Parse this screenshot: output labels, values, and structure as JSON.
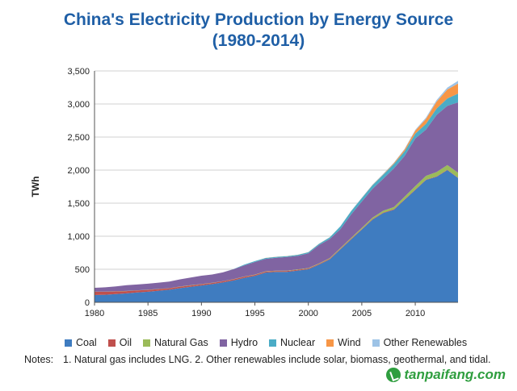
{
  "title_line1": "China's Electricity Production by Energy Source",
  "title_line2": "(1980-2014)",
  "notes_label": "Notes:",
  "notes_text": "1. Natural gas includes LNG. 2. Other renewables include solar, biomass, geothermal, and tidal.",
  "watermark": "tanpaifang.com",
  "chart_data": {
    "type": "area",
    "stacked": true,
    "ylabel": "TWh",
    "xlabel": "",
    "ylim": [
      0,
      3500
    ],
    "xlim": [
      1980,
      2014
    ],
    "yticks": [
      0,
      500,
      1000,
      1500,
      2000,
      2500,
      3000,
      3500
    ],
    "ytick_labels": [
      "0",
      "500",
      "1,000",
      "1,500",
      "2,000",
      "2,500",
      "3,000",
      "3,500"
    ],
    "xticks": [
      1980,
      1985,
      1990,
      1995,
      2000,
      2005,
      2010
    ],
    "grid": "horizontal",
    "legend_position": "bottom",
    "x": [
      1980,
      1981,
      1982,
      1983,
      1984,
      1985,
      1986,
      1987,
      1988,
      1989,
      1990,
      1991,
      1992,
      1993,
      1994,
      1995,
      1996,
      1997,
      1998,
      1999,
      2000,
      2001,
      2002,
      2003,
      2004,
      2005,
      2006,
      2007,
      2008,
      2009,
      2010,
      2011,
      2012,
      2013,
      2014
    ],
    "series": [
      {
        "name": "Coal",
        "color": "#3f7cc0",
        "values": [
          110,
          115,
          125,
          135,
          150,
          160,
          175,
          190,
          215,
          235,
          255,
          275,
          300,
          330,
          370,
          400,
          450,
          460,
          460,
          480,
          500,
          570,
          650,
          800,
          950,
          1100,
          1250,
          1350,
          1400,
          1550,
          1700,
          1850,
          1900,
          2000,
          1880
        ]
      },
      {
        "name": "Oil",
        "color": "#c0504d",
        "values": [
          50,
          45,
          40,
          35,
          30,
          28,
          25,
          22,
          22,
          20,
          18,
          18,
          18,
          17,
          16,
          15,
          15,
          14,
          14,
          13,
          12,
          11,
          10,
          10,
          10,
          9,
          9,
          8,
          8,
          7,
          7,
          6,
          6,
          6,
          5
        ]
      },
      {
        "name": "Natural Gas",
        "color": "#9bbb59",
        "values": [
          2,
          2,
          2,
          2,
          2,
          2,
          2,
          2,
          2,
          3,
          3,
          3,
          3,
          3,
          4,
          4,
          4,
          5,
          5,
          6,
          6,
          8,
          9,
          12,
          15,
          18,
          22,
          27,
          32,
          40,
          50,
          58,
          65,
          70,
          75
        ]
      },
      {
        "name": "Hydro",
        "color": "#8064a2",
        "values": [
          58,
          65,
          74,
          86,
          87,
          92,
          95,
          100,
          109,
          118,
          126,
          125,
          131,
          151,
          168,
          191,
          188,
          195,
          206,
          204,
          222,
          277,
          288,
          284,
          353,
          397,
          436,
          485,
          585,
          616,
          722,
          699,
          864,
          896,
          1064
        ]
      },
      {
        "name": "Nuclear",
        "color": "#4bacc6",
        "values": [
          0,
          0,
          0,
          0,
          0,
          0,
          0,
          0,
          0,
          0,
          0,
          0,
          0,
          2,
          13,
          13,
          14,
          14,
          14,
          15,
          17,
          18,
          25,
          43,
          50,
          53,
          55,
          62,
          68,
          70,
          74,
          87,
          97,
          112,
          133
        ]
      },
      {
        "name": "Wind",
        "color": "#f79646",
        "values": [
          0,
          0,
          0,
          0,
          0,
          0,
          0,
          0,
          0,
          0,
          0,
          0,
          0,
          0,
          0,
          0,
          1,
          1,
          1,
          1,
          1,
          1,
          1,
          1,
          1,
          2,
          4,
          6,
          13,
          28,
          45,
          74,
          103,
          135,
          153
        ]
      },
      {
        "name": "Other Renewables",
        "color": "#9dc3e6",
        "values": [
          0,
          0,
          0,
          0,
          0,
          0,
          0,
          0,
          0,
          0,
          0,
          0,
          0,
          0,
          0,
          0,
          0,
          0,
          0,
          0,
          2,
          2,
          3,
          3,
          4,
          5,
          5,
          6,
          7,
          8,
          12,
          20,
          25,
          30,
          40
        ]
      }
    ]
  }
}
